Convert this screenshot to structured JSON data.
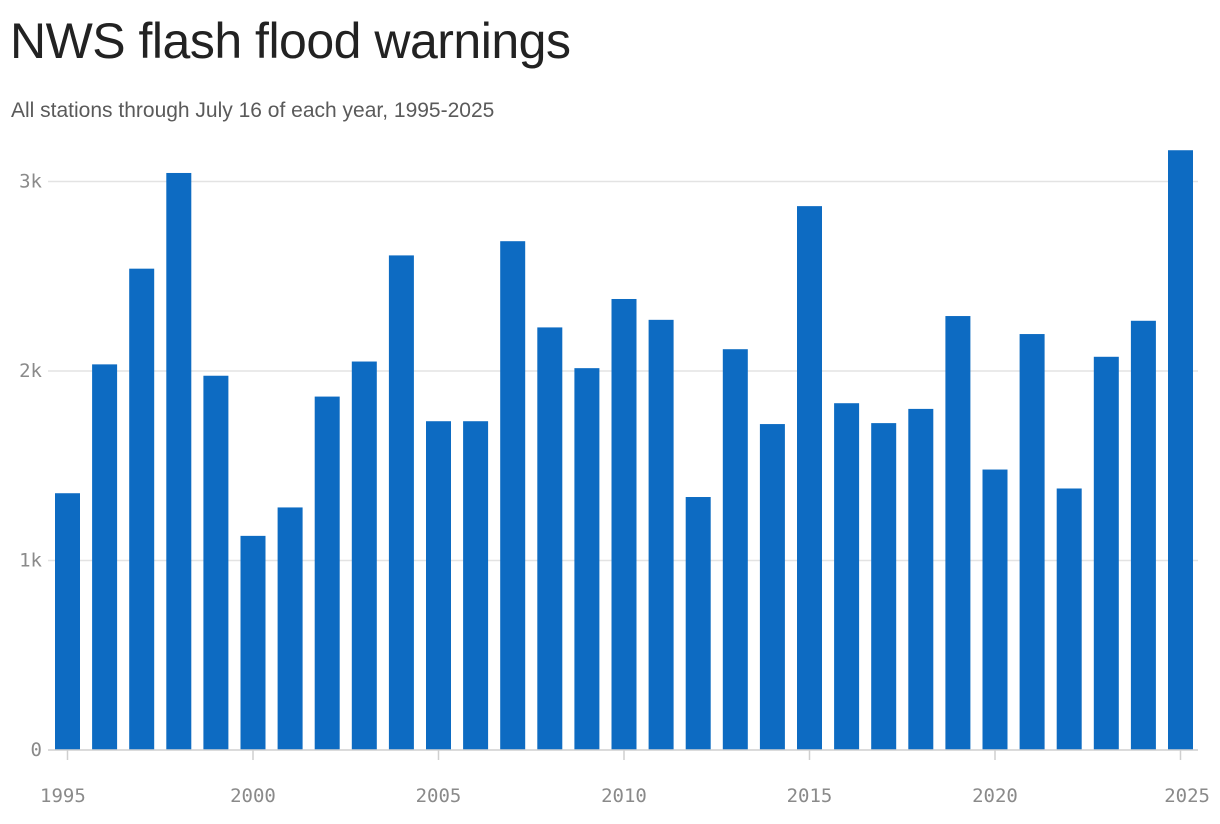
{
  "header": {
    "title": "NWS flash flood warnings",
    "subtitle": "All stations through July 16 of each year, 1995-2025"
  },
  "colors": {
    "bar": "#0d6bc2",
    "grid": "#e3e3e3",
    "axis": "#cfcfcf",
    "tick_text": "#8a8a8a"
  },
  "chart_data": {
    "type": "bar",
    "title": "NWS flash flood warnings",
    "subtitle": "All stations through July 16 of each year, 1995-2025",
    "xlabel": "",
    "ylabel": "",
    "ylim": [
      0,
      3200
    ],
    "grid": "horizontal",
    "yticks": [
      0,
      1000,
      2000,
      3000
    ],
    "ytick_labels": [
      "0",
      "1k",
      "2k",
      "3k"
    ],
    "xticks": [
      1995,
      2000,
      2005,
      2010,
      2015,
      2020,
      2025
    ],
    "xtick_labels": [
      "1995",
      "2000",
      "2005",
      "2010",
      "2015",
      "2020",
      "2025"
    ],
    "categories": [
      1995,
      1996,
      1997,
      1998,
      1999,
      2000,
      2001,
      2002,
      2003,
      2004,
      2005,
      2006,
      2007,
      2008,
      2009,
      2010,
      2011,
      2012,
      2013,
      2014,
      2015,
      2016,
      2017,
      2018,
      2019,
      2020,
      2021,
      2022,
      2023,
      2024,
      2025
    ],
    "values": [
      1355,
      2035,
      2540,
      3045,
      1975,
      1130,
      1280,
      1865,
      2050,
      2610,
      1735,
      1735,
      2685,
      2230,
      2015,
      2380,
      2270,
      1335,
      2115,
      1720,
      2870,
      1830,
      1725,
      1800,
      2290,
      1480,
      2195,
      1380,
      2075,
      2265,
      3165
    ]
  }
}
